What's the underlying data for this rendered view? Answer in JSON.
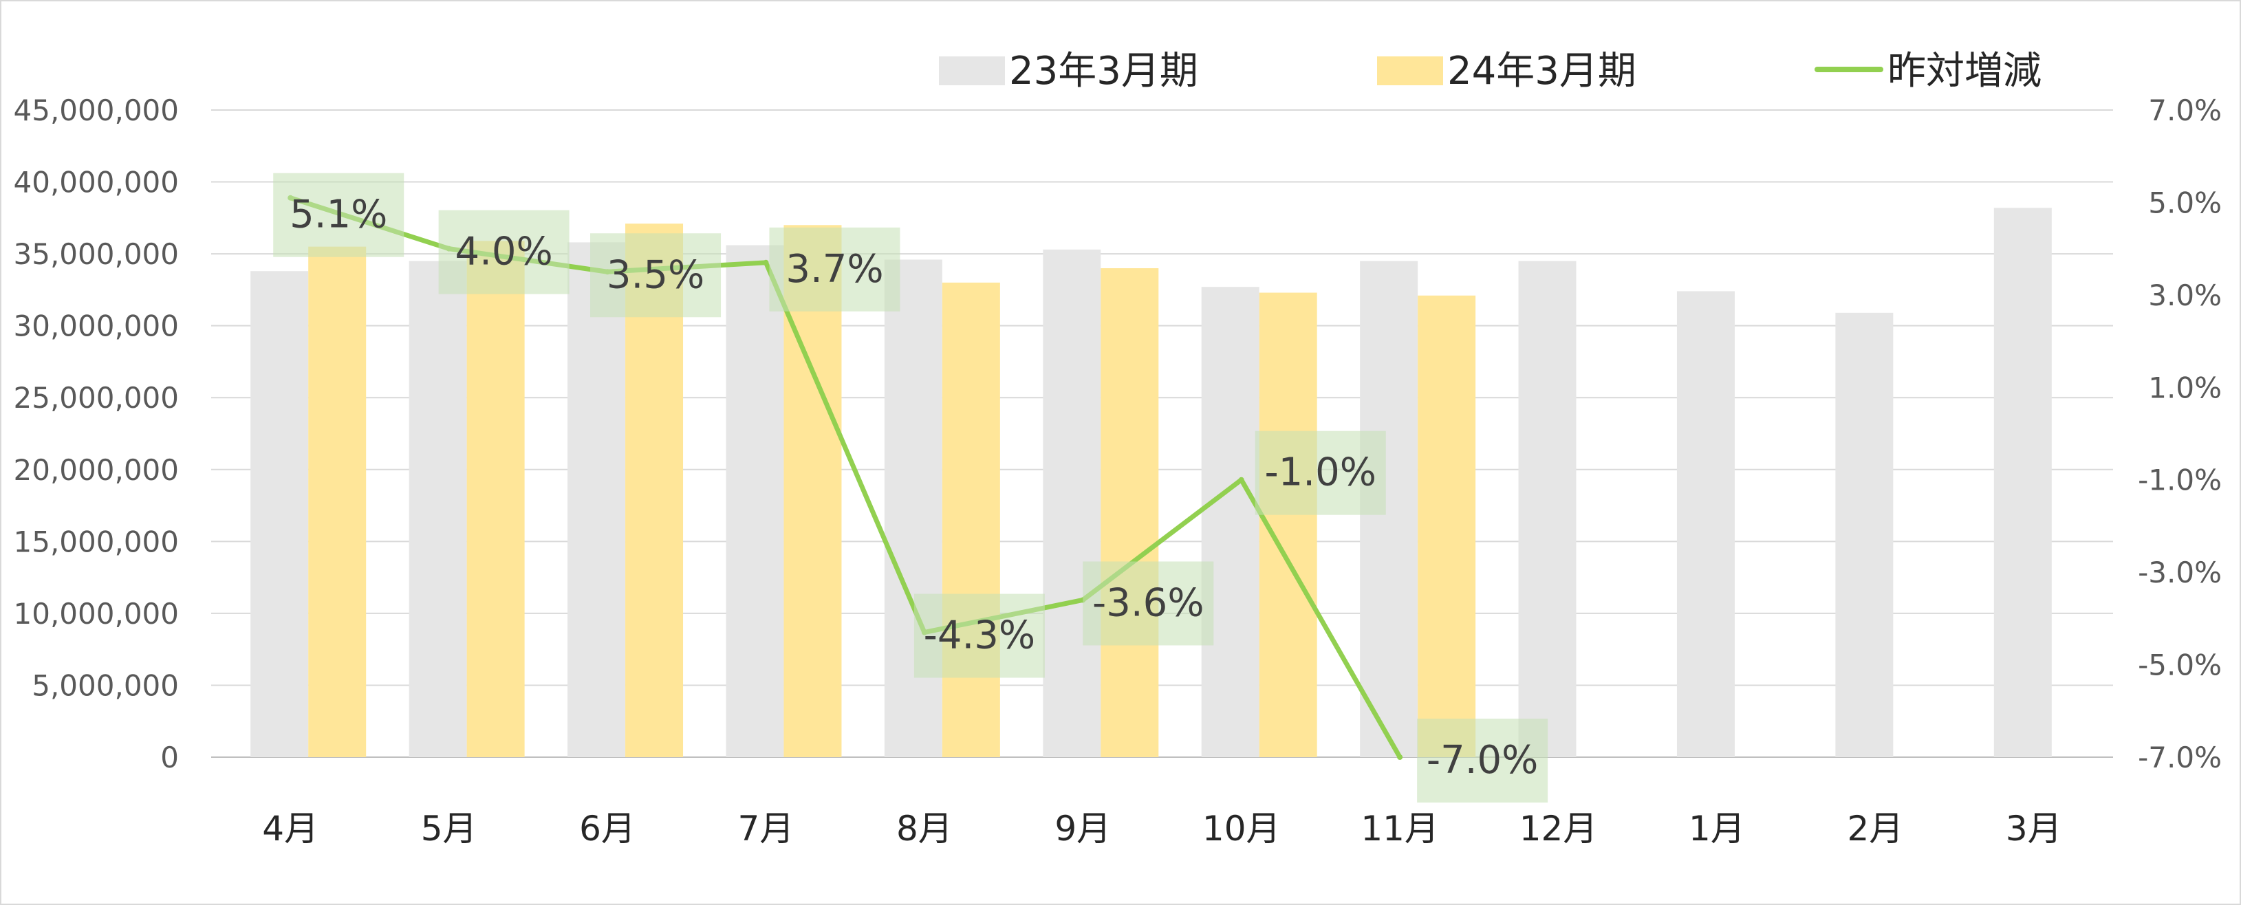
{
  "chart_data": {
    "type": "bar",
    "categories": [
      "4月",
      "5月",
      "6月",
      "7月",
      "8月",
      "9月",
      "10月",
      "11月",
      "12月",
      "1月",
      "2月",
      "3月"
    ],
    "series": [
      {
        "name": "23年3月期",
        "type": "bar",
        "axis": "left",
        "color": "#e6e6e6",
        "values": [
          33800000,
          34500000,
          35800000,
          35600000,
          34600000,
          35300000,
          32700000,
          34500000,
          34500000,
          32400000,
          30900000,
          38200000
        ]
      },
      {
        "name": "24年3月期",
        "type": "bar",
        "axis": "left",
        "color": "#ffe699",
        "values": [
          35500000,
          35900000,
          37100000,
          37000000,
          33000000,
          34000000,
          32300000,
          32100000,
          null,
          null,
          null,
          null
        ]
      },
      {
        "name": "昨対増減",
        "type": "line",
        "axis": "right",
        "color": "#92d050",
        "values": [
          5.1,
          4.0,
          3.5,
          3.7,
          -4.3,
          -3.6,
          -1.0,
          -7.0,
          null,
          null,
          null,
          null
        ],
        "data_labels": [
          "5.1%",
          "4.0%",
          "3.5%",
          "3.7%",
          "-4.3%",
          "-3.6%",
          "-1.0%",
          "-7.0%"
        ]
      }
    ],
    "y_left": {
      "min": 0,
      "max": 45000000,
      "ticks": [
        0,
        5000000,
        10000000,
        15000000,
        20000000,
        25000000,
        30000000,
        35000000,
        40000000,
        45000000
      ],
      "tick_labels": [
        "0",
        "5,000,000",
        "10,000,000",
        "15,000,000",
        "20,000,000",
        "25,000,000",
        "30,000,000",
        "35,000,000",
        "40,000,000",
        "45,000,000"
      ]
    },
    "y_right": {
      "min": -7.0,
      "max": 7.0,
      "ticks": [
        -7.0,
        -5.0,
        -3.0,
        -1.0,
        1.0,
        3.0,
        5.0,
        7.0
      ],
      "tick_labels": [
        "-7.0%",
        "-5.0%",
        "-3.0%",
        "-1.0%",
        "1.0%",
        "3.0%",
        "5.0%",
        "7.0%"
      ]
    },
    "grid": true,
    "legend_position": "top",
    "label_box_color": "#c5e0b4"
  }
}
